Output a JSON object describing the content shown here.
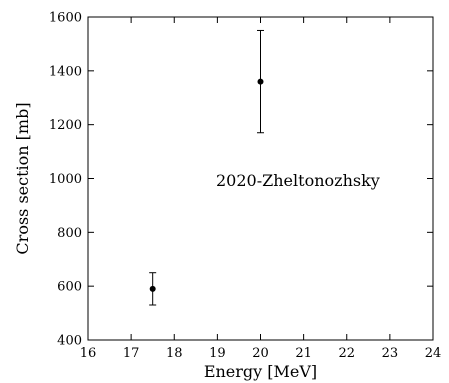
{
  "chart_data": {
    "type": "scatter",
    "title": "",
    "xlabel": "Energy [MeV]",
    "ylabel": "Cross section [mb]",
    "xlim": [
      16,
      24
    ],
    "ylim": [
      400,
      1600
    ],
    "xticks": [
      16,
      17,
      18,
      19,
      20,
      21,
      22,
      23,
      24
    ],
    "yticks": [
      400,
      600,
      800,
      1000,
      1200,
      1400,
      1600
    ],
    "grid": false,
    "legend": "none",
    "annotation": "2020-Zheltonozhsky",
    "series": [
      {
        "points": [
          {
            "x": 17.5,
            "y": 590,
            "err": 60
          },
          {
            "x": 20.0,
            "y": 1360,
            "err": 190
          }
        ]
      }
    ],
    "colors": {
      "marker": "#000000",
      "axis": "#000000"
    }
  }
}
